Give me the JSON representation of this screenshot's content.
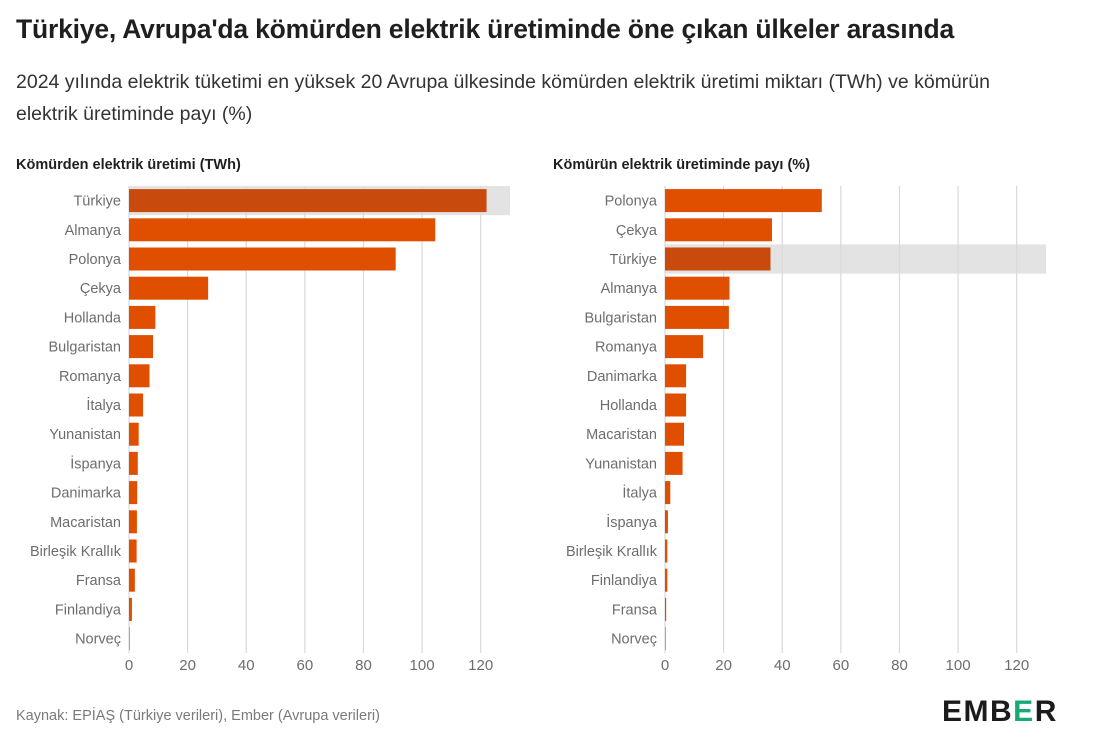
{
  "title": "Türkiye, Avrupa'da kömürden elektrik üretiminde öne çıkan ülkeler arasında",
  "subtitle": "2024 yılında elektrik tüketimi en yüksek 20 Avrupa ülkesinde kömürden elektrik üretimi miktarı (TWh) ve kömürün elektrik üretiminde payı (%)",
  "source": "Kaynak: EPİAŞ (Türkiye verileri), Ember (Avrupa verileri)",
  "logo": {
    "pre": "EMB",
    "accent": "E",
    "post": "R"
  },
  "colors": {
    "bar": "#e04e00",
    "bar_highlight": "#c84a0c",
    "highlight_band": "#e3e3e3",
    "grid": "#d9d9d9",
    "label": "#6d6d6d"
  },
  "chart_data": [
    {
      "type": "bar",
      "orientation": "horizontal",
      "title": "Kömürden elektrik üretimi (TWh)",
      "highlight": "Türkiye",
      "categories": [
        "Türkiye",
        "Almanya",
        "Polonya",
        "Çekya",
        "Hollanda",
        "Bulgaristan",
        "Romanya",
        "İtalya",
        "Yunanistan",
        "İspanya",
        "Danimarka",
        "Macaristan",
        "Birleşik Krallık",
        "Fransa",
        "Finlandiya",
        "Norveç"
      ],
      "values": [
        122,
        104.5,
        91,
        27,
        9,
        8.2,
        7,
        4.8,
        3.3,
        3,
        2.8,
        2.7,
        2.6,
        2,
        1,
        0.1
      ],
      "xlim": [
        0,
        130
      ],
      "xticks": [
        0,
        20,
        40,
        60,
        80,
        100,
        120
      ],
      "grid": true
    },
    {
      "type": "bar",
      "orientation": "horizontal",
      "title": "Kömürün elektrik üretiminde payı (%)",
      "highlight": "Türkiye",
      "categories": [
        "Polonya",
        "Çekya",
        "Türkiye",
        "Almanya",
        "Bulgaristan",
        "Romanya",
        "Danimarka",
        "Hollanda",
        "Macaristan",
        "Yunanistan",
        "İtalya",
        "İspanya",
        "Birleşik Krallık",
        "Finlandiya",
        "Fransa",
        "Norveç"
      ],
      "values": [
        53.5,
        36.5,
        36,
        22,
        21.8,
        13,
        7.2,
        7.2,
        6.5,
        6,
        1.8,
        1,
        0.8,
        0.8,
        0.4,
        0.1
      ],
      "xlim": [
        0,
        130
      ],
      "xticks": [
        0,
        20,
        40,
        60,
        80,
        100,
        120
      ],
      "grid": true
    }
  ]
}
